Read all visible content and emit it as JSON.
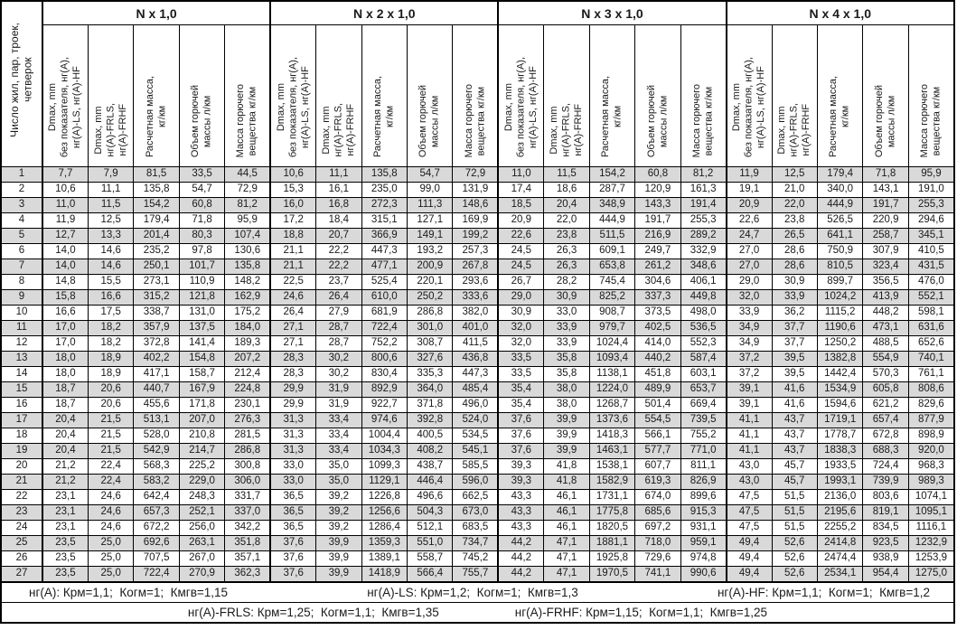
{
  "first_col_header": "Число жил, пар, троек,\nчетверок",
  "groups": [
    {
      "title": "N x 1,0"
    },
    {
      "title": "N x 2 x 1,0"
    },
    {
      "title": "N x 3 x 1,0"
    },
    {
      "title": "N x 4 x 1,0"
    }
  ],
  "sub_headers": [
    "Dmax, mm\nбез показателя, нг(А),\nнг(А)-LS, нг(А)-HF",
    "Dmax, mm\nнг(А)-FRLS,\nнг(А)-FRHF",
    "Расчетная масса,\nкг/км",
    "Объем горючей\nмассы л/км",
    "Масса горючего\nвещества кг/км"
  ],
  "rows": [
    {
      "n": "1",
      "cells": [
        "7,7",
        "7,9",
        "81,5",
        "33,5",
        "44,5",
        "10,6",
        "11,1",
        "135,8",
        "54,7",
        "72,9",
        "11,0",
        "11,5",
        "154,2",
        "60,8",
        "81,2",
        "11,9",
        "12,5",
        "179,4",
        "71,8",
        "95,9"
      ]
    },
    {
      "n": "2",
      "cells": [
        "10,6",
        "11,1",
        "135,8",
        "54,7",
        "72,9",
        "15,3",
        "16,1",
        "235,0",
        "99,0",
        "131,9",
        "17,4",
        "18,6",
        "287,7",
        "120,9",
        "161,3",
        "19,1",
        "21,0",
        "340,0",
        "143,1",
        "191,0"
      ]
    },
    {
      "n": "3",
      "cells": [
        "11,0",
        "11,5",
        "154,2",
        "60,8",
        "81,2",
        "16,0",
        "16,8",
        "272,3",
        "111,3",
        "148,6",
        "18,5",
        "20,4",
        "348,9",
        "143,3",
        "191,4",
        "20,9",
        "22,0",
        "444,9",
        "191,7",
        "255,3"
      ]
    },
    {
      "n": "4",
      "cells": [
        "11,9",
        "12,5",
        "179,4",
        "71,8",
        "95,9",
        "17,2",
        "18,4",
        "315,1",
        "127,1",
        "169,9",
        "20,9",
        "22,0",
        "444,9",
        "191,7",
        "255,3",
        "22,6",
        "23,8",
        "526,5",
        "220,9",
        "294,6"
      ]
    },
    {
      "n": "5",
      "cells": [
        "12,7",
        "13,3",
        "201,4",
        "80,3",
        "107,4",
        "18,8",
        "20,7",
        "366,9",
        "149,1",
        "199,2",
        "22,6",
        "23,8",
        "511,5",
        "216,9",
        "289,2",
        "24,7",
        "26,5",
        "641,1",
        "258,7",
        "345,1"
      ]
    },
    {
      "n": "6",
      "cells": [
        "14,0",
        "14,6",
        "235,2",
        "97,8",
        "130,6",
        "21,1",
        "22,2",
        "447,3",
        "193,2",
        "257,3",
        "24,5",
        "26,3",
        "609,1",
        "249,7",
        "332,9",
        "27,0",
        "28,6",
        "750,9",
        "307,9",
        "410,5"
      ]
    },
    {
      "n": "7",
      "cells": [
        "14,0",
        "14,6",
        "250,1",
        "101,7",
        "135,8",
        "21,1",
        "22,2",
        "477,1",
        "200,9",
        "267,8",
        "24,5",
        "26,3",
        "653,8",
        "261,2",
        "348,6",
        "27,0",
        "28,6",
        "810,5",
        "323,4",
        "431,5"
      ]
    },
    {
      "n": "8",
      "cells": [
        "14,8",
        "15,5",
        "273,1",
        "110,9",
        "148,2",
        "22,5",
        "23,7",
        "525,4",
        "220,1",
        "293,6",
        "26,7",
        "28,2",
        "745,4",
        "304,6",
        "406,1",
        "29,0",
        "30,9",
        "899,7",
        "356,5",
        "476,0"
      ]
    },
    {
      "n": "9",
      "cells": [
        "15,8",
        "16,6",
        "315,2",
        "121,8",
        "162,9",
        "24,6",
        "26,4",
        "610,0",
        "250,2",
        "333,6",
        "29,0",
        "30,9",
        "825,2",
        "337,3",
        "449,8",
        "32,0",
        "33,9",
        "1024,2",
        "413,9",
        "552,1"
      ]
    },
    {
      "n": "10",
      "cells": [
        "16,6",
        "17,5",
        "338,7",
        "131,0",
        "175,2",
        "26,4",
        "27,9",
        "681,9",
        "286,8",
        "382,0",
        "30,9",
        "33,0",
        "908,7",
        "373,5",
        "498,0",
        "33,9",
        "36,2",
        "1115,2",
        "448,2",
        "598,1"
      ]
    },
    {
      "n": "11",
      "cells": [
        "17,0",
        "18,2",
        "357,9",
        "137,5",
        "184,0",
        "27,1",
        "28,7",
        "722,4",
        "301,0",
        "401,0",
        "32,0",
        "33,9",
        "979,7",
        "402,5",
        "536,5",
        "34,9",
        "37,7",
        "1190,6",
        "473,1",
        "631,6"
      ]
    },
    {
      "n": "12",
      "cells": [
        "17,0",
        "18,2",
        "372,8",
        "141,4",
        "189,3",
        "27,1",
        "28,7",
        "752,2",
        "308,7",
        "411,5",
        "32,0",
        "33,9",
        "1024,4",
        "414,0",
        "552,3",
        "34,9",
        "37,7",
        "1250,2",
        "488,5",
        "652,6"
      ]
    },
    {
      "n": "13",
      "cells": [
        "18,0",
        "18,9",
        "402,2",
        "154,8",
        "207,2",
        "28,3",
        "30,2",
        "800,6",
        "327,6",
        "436,8",
        "33,5",
        "35,8",
        "1093,4",
        "440,2",
        "587,4",
        "37,2",
        "39,5",
        "1382,8",
        "554,9",
        "740,1"
      ]
    },
    {
      "n": "14",
      "cells": [
        "18,0",
        "18,9",
        "417,1",
        "158,7",
        "212,4",
        "28,3",
        "30,2",
        "830,4",
        "335,3",
        "447,3",
        "33,5",
        "35,8",
        "1138,1",
        "451,8",
        "603,1",
        "37,2",
        "39,5",
        "1442,4",
        "570,3",
        "761,1"
      ]
    },
    {
      "n": "15",
      "cells": [
        "18,7",
        "20,6",
        "440,7",
        "167,9",
        "224,8",
        "29,9",
        "31,9",
        "892,9",
        "364,0",
        "485,4",
        "35,4",
        "38,0",
        "1224,0",
        "489,9",
        "653,7",
        "39,1",
        "41,6",
        "1534,9",
        "605,8",
        "808,6"
      ]
    },
    {
      "n": "16",
      "cells": [
        "18,7",
        "20,6",
        "455,6",
        "171,8",
        "230,1",
        "29,9",
        "31,9",
        "922,7",
        "371,8",
        "496,0",
        "35,4",
        "38,0",
        "1268,7",
        "501,4",
        "669,4",
        "39,1",
        "41,6",
        "1594,6",
        "621,2",
        "829,6"
      ]
    },
    {
      "n": "17",
      "cells": [
        "20,4",
        "21,5",
        "513,1",
        "207,0",
        "276,3",
        "31,3",
        "33,4",
        "974,6",
        "392,8",
        "524,0",
        "37,6",
        "39,9",
        "1373,6",
        "554,5",
        "739,5",
        "41,1",
        "43,7",
        "1719,1",
        "657,4",
        "877,9"
      ]
    },
    {
      "n": "18",
      "cells": [
        "20,4",
        "21,5",
        "528,0",
        "210,8",
        "281,5",
        "31,3",
        "33,4",
        "1004,4",
        "400,5",
        "534,5",
        "37,6",
        "39,9",
        "1418,3",
        "566,1",
        "755,2",
        "41,1",
        "43,7",
        "1778,7",
        "672,8",
        "898,9"
      ]
    },
    {
      "n": "19",
      "cells": [
        "20,4",
        "21,5",
        "542,9",
        "214,7",
        "286,8",
        "31,3",
        "33,4",
        "1034,3",
        "408,2",
        "545,1",
        "37,6",
        "39,9",
        "1463,1",
        "577,7",
        "771,0",
        "41,1",
        "43,7",
        "1838,3",
        "688,3",
        "920,0"
      ]
    },
    {
      "n": "20",
      "cells": [
        "21,2",
        "22,4",
        "568,3",
        "225,2",
        "300,8",
        "33,0",
        "35,0",
        "1099,3",
        "438,7",
        "585,5",
        "39,3",
        "41,8",
        "1538,1",
        "607,7",
        "811,1",
        "43,0",
        "45,7",
        "1933,5",
        "724,4",
        "968,3"
      ]
    },
    {
      "n": "21",
      "cells": [
        "21,2",
        "22,4",
        "583,2",
        "229,0",
        "306,0",
        "33,0",
        "35,0",
        "1129,1",
        "446,4",
        "596,0",
        "39,3",
        "41,8",
        "1582,9",
        "619,3",
        "826,9",
        "43,0",
        "45,7",
        "1993,1",
        "739,9",
        "989,3"
      ]
    },
    {
      "n": "22",
      "cells": [
        "23,1",
        "24,6",
        "642,4",
        "248,3",
        "331,7",
        "36,5",
        "39,2",
        "1226,8",
        "496,6",
        "662,5",
        "43,3",
        "46,1",
        "1731,1",
        "674,0",
        "899,6",
        "47,5",
        "51,5",
        "2136,0",
        "803,6",
        "1074,1"
      ]
    },
    {
      "n": "23",
      "cells": [
        "23,1",
        "24,6",
        "657,3",
        "252,1",
        "337,0",
        "36,5",
        "39,2",
        "1256,6",
        "504,3",
        "673,0",
        "43,3",
        "46,1",
        "1775,8",
        "685,6",
        "915,3",
        "47,5",
        "51,5",
        "2195,6",
        "819,1",
        "1095,1"
      ]
    },
    {
      "n": "24",
      "cells": [
        "23,1",
        "24,6",
        "672,2",
        "256,0",
        "342,2",
        "36,5",
        "39,2",
        "1286,4",
        "512,1",
        "683,5",
        "43,3",
        "46,1",
        "1820,5",
        "697,2",
        "931,1",
        "47,5",
        "51,5",
        "2255,2",
        "834,5",
        "1116,1"
      ]
    },
    {
      "n": "25",
      "cells": [
        "23,5",
        "25,0",
        "692,6",
        "263,1",
        "351,8",
        "37,6",
        "39,9",
        "1359,3",
        "551,0",
        "734,7",
        "44,2",
        "47,1",
        "1881,1",
        "718,0",
        "959,1",
        "49,4",
        "52,6",
        "2414,8",
        "923,5",
        "1232,9"
      ]
    },
    {
      "n": "26",
      "cells": [
        "23,5",
        "25,0",
        "707,5",
        "267,0",
        "357,1",
        "37,6",
        "39,9",
        "1389,1",
        "558,7",
        "745,2",
        "44,2",
        "47,1",
        "1925,8",
        "729,6",
        "974,8",
        "49,4",
        "52,6",
        "2474,4",
        "938,9",
        "1253,9"
      ]
    },
    {
      "n": "27",
      "cells": [
        "23,5",
        "25,0",
        "722,4",
        "270,9",
        "362,3",
        "37,6",
        "39,9",
        "1418,9",
        "566,4",
        "755,7",
        "44,2",
        "47,1",
        "1970,5",
        "741,1",
        "990,6",
        "49,4",
        "52,6",
        "2534,1",
        "954,4",
        "1275,0"
      ]
    }
  ],
  "footnotes": {
    "row1": [
      "нг(А): Крм=1,1;  Когм=1;  Кмгв=1,15",
      "нг(А)-LS: Крм=1,2;  Когм=1;  Кмгв=1,3",
      "нг(А)-HF: Крм=1,1;  Когм=1;  Кмгв=1,2"
    ],
    "row2": [
      "нг(А)-FRLS: Крм=1,25;  Когм=1,1;  Кмгв=1,35",
      "нг(А)-FRHF: Крм=1,15;  Когм=1,1;  Кмгв=1,25"
    ]
  },
  "colors": {
    "stripe": "#d9d9d9",
    "border": "#000000",
    "text": "#1a1a1a",
    "background": "#ffffff"
  }
}
